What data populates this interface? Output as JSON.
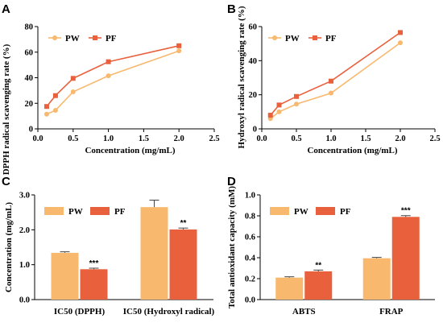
{
  "colors": {
    "pw": "#F8B86E",
    "pf": "#E9603D"
  },
  "chart_data": [
    {
      "panel": "A",
      "type": "line",
      "xlabel": "Concentration (mg/mL)",
      "ylabel": "DPPH radical scavenging rate (%)",
      "xlim": [
        0,
        2.5
      ],
      "ylim": [
        0,
        80
      ],
      "xticks": [
        "0.0",
        "0.5",
        "1.0",
        "1.5",
        "2.0",
        "2.5"
      ],
      "yticks": [
        "0",
        "20",
        "40",
        "60",
        "80"
      ],
      "legend": "top-left",
      "x": [
        0.125,
        0.25,
        0.5,
        1.0,
        2.0
      ],
      "series": [
        {
          "name": "PW",
          "values": [
            11.5,
            14.5,
            29,
            41.5,
            61
          ]
        },
        {
          "name": "PF",
          "values": [
            17.5,
            26,
            39.5,
            52.5,
            65
          ]
        }
      ]
    },
    {
      "panel": "B",
      "type": "line",
      "xlabel": "Concentration (mg/mL)",
      "ylabel": "Hydroxyl radical scavenging rate (%)",
      "xlim": [
        0,
        2.5
      ],
      "ylim": [
        0,
        60
      ],
      "xticks": [
        "0.0",
        "0.5",
        "1.0",
        "1.5",
        "2.0",
        "2.5"
      ],
      "yticks": [
        "0",
        "20",
        "40",
        "60"
      ],
      "legend": "top-left",
      "x": [
        0.125,
        0.25,
        0.5,
        1.0,
        2.0
      ],
      "series": [
        {
          "name": "PW",
          "values": [
            6,
            10,
            14.5,
            21,
            50.5
          ]
        },
        {
          "name": "PF",
          "values": [
            8,
            14,
            19,
            28,
            56.5
          ]
        }
      ]
    },
    {
      "panel": "C",
      "type": "bar",
      "xlabel": "",
      "ylabel": "Concentration (mg/mL)",
      "ylim": [
        0,
        3.0
      ],
      "yticks": [
        "0.0",
        "1.0",
        "2.0",
        "3.0"
      ],
      "legend": "top-left",
      "categories": [
        "IC50 (DPPH)",
        "IC50 (Hydroxyl radical)"
      ],
      "series": [
        {
          "name": "PW",
          "values": [
            1.34,
            2.65
          ],
          "errors": [
            0.03,
            0.2
          ]
        },
        {
          "name": "PF",
          "values": [
            0.87,
            2.01
          ],
          "errors": [
            0.03,
            0.04
          ]
        }
      ],
      "significance": [
        "***",
        "**"
      ]
    },
    {
      "panel": "D",
      "type": "bar",
      "xlabel": "",
      "ylabel": "Total antioxidant capacity (mM)",
      "ylim": [
        0,
        1.0
      ],
      "yticks": [
        "0.0",
        "0.2",
        "0.4",
        "0.6",
        "0.8",
        "1.0"
      ],
      "legend": "top-left",
      "categories": [
        "ABTS",
        "FRAP"
      ],
      "series": [
        {
          "name": "PW",
          "values": [
            0.21,
            0.395
          ],
          "errors": [
            0.008,
            0.008
          ]
        },
        {
          "name": "PF",
          "values": [
            0.27,
            0.79
          ],
          "errors": [
            0.012,
            0.012
          ]
        }
      ],
      "significance": [
        "**",
        "***"
      ]
    }
  ]
}
